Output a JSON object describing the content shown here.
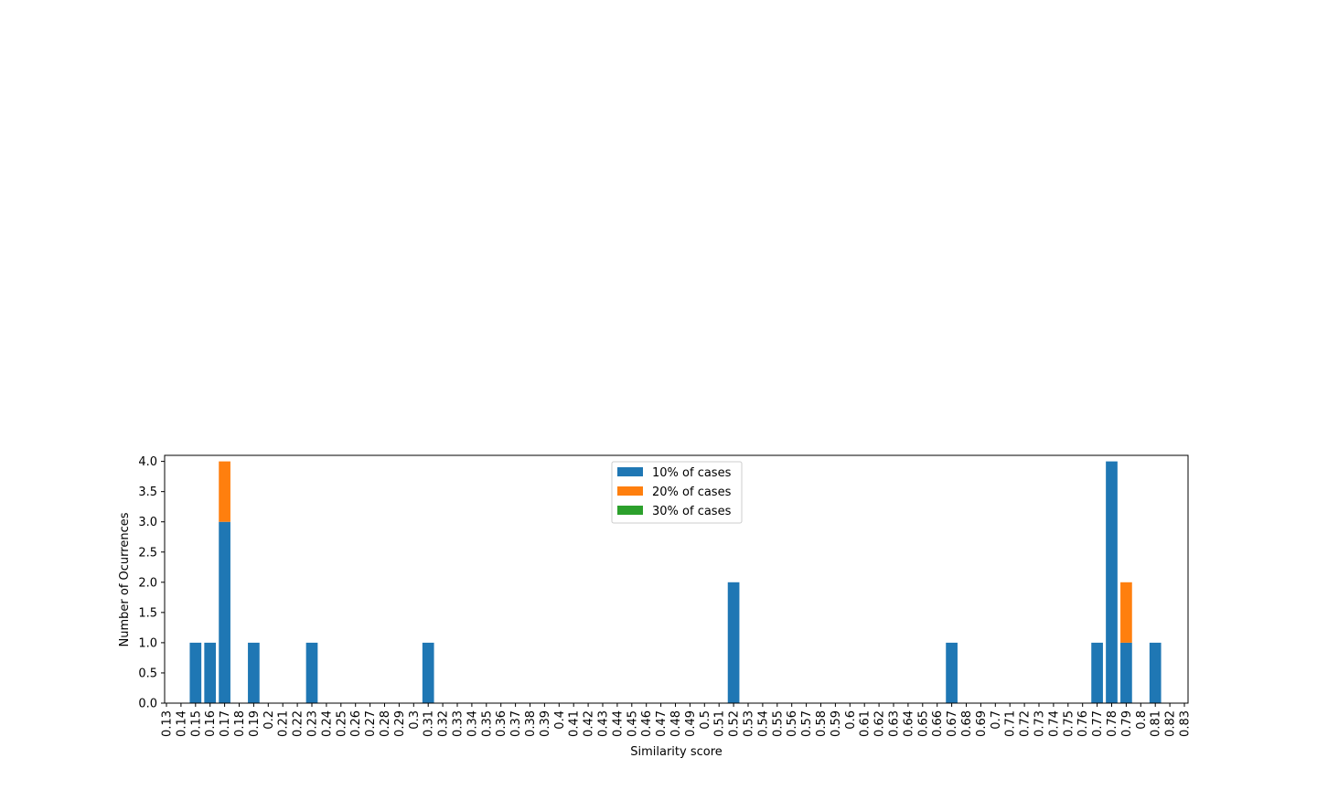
{
  "chart_data": {
    "type": "bar",
    "stacked": true,
    "title": "",
    "xlabel": "Similarity score",
    "ylabel": "Number of Ocurrences",
    "ylim": [
      0,
      4.1
    ],
    "grid": false,
    "legend_position": "top-center",
    "categories": [
      "0.13",
      "0.14",
      "0.15",
      "0.16",
      "0.17",
      "0.18",
      "0.19",
      "0.2",
      "0.21",
      "0.22",
      "0.23",
      "0.24",
      "0.25",
      "0.26",
      "0.27",
      "0.28",
      "0.29",
      "0.3",
      "0.31",
      "0.32",
      "0.33",
      "0.34",
      "0.35",
      "0.36",
      "0.37",
      "0.38",
      "0.39",
      "0.4",
      "0.41",
      "0.42",
      "0.43",
      "0.44",
      "0.45",
      "0.46",
      "0.47",
      "0.48",
      "0.49",
      "0.5",
      "0.51",
      "0.52",
      "0.53",
      "0.54",
      "0.55",
      "0.56",
      "0.57",
      "0.58",
      "0.59",
      "0.6",
      "0.61",
      "0.62",
      "0.63",
      "0.64",
      "0.65",
      "0.66",
      "0.67",
      "0.68",
      "0.69",
      "0.7",
      "0.71",
      "0.72",
      "0.73",
      "0.74",
      "0.75",
      "0.76",
      "0.77",
      "0.78",
      "0.79",
      "0.8",
      "0.81",
      "0.82",
      "0.83"
    ],
    "yticks": [
      "0.0",
      "0.5",
      "1.0",
      "1.5",
      "2.0",
      "2.5",
      "3.0",
      "3.5",
      "4.0"
    ],
    "series": [
      {
        "name": "10% of cases",
        "color": "#1f77b4",
        "values": {
          "0.15": 1,
          "0.16": 1,
          "0.17": 3,
          "0.19": 1,
          "0.23": 1,
          "0.31": 1,
          "0.52": 2,
          "0.67": 1,
          "0.77": 1,
          "0.78": 4,
          "0.79": 1,
          "0.81": 1
        }
      },
      {
        "name": "20% of cases",
        "color": "#ff7f0e",
        "values": {
          "0.17": 1,
          "0.79": 1
        }
      },
      {
        "name": "30% of cases",
        "color": "#2ca02c",
        "values": {}
      }
    ]
  }
}
